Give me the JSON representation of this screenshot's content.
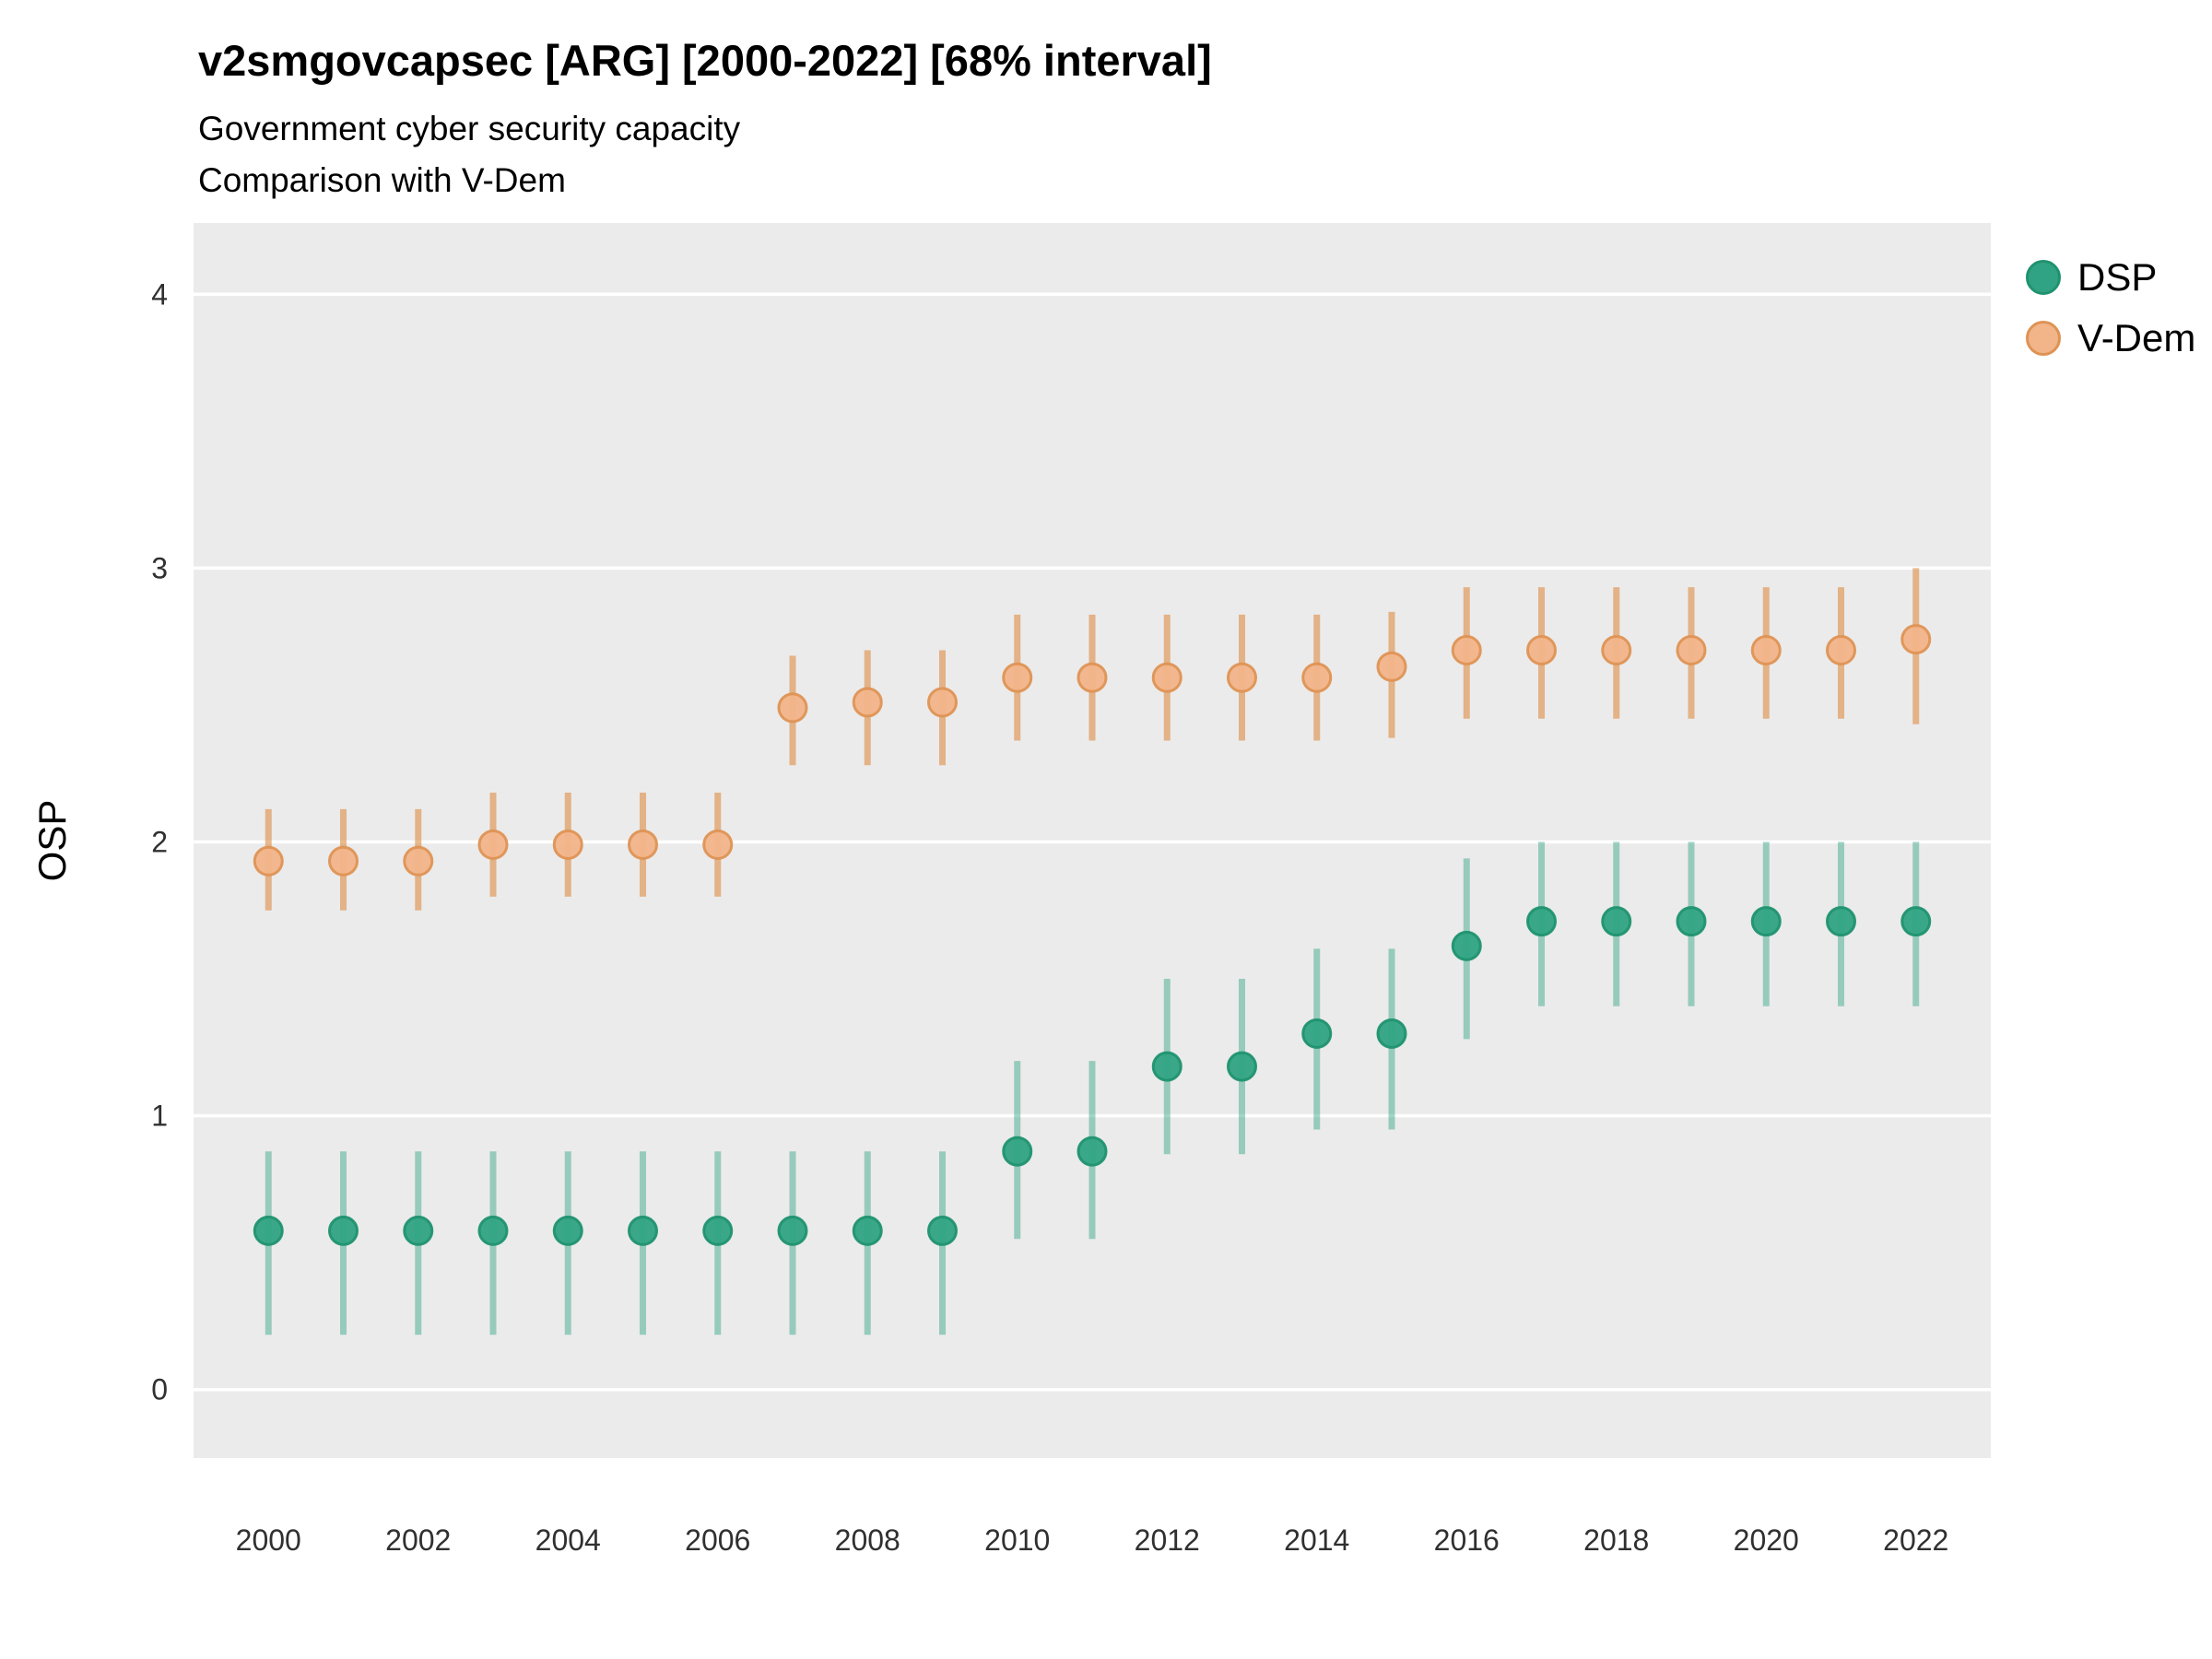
{
  "title": "v2smgovcapsec [ARG] [2000-2022] [68% interval]",
  "subtitle1": "Government cyber security capacity",
  "subtitle2": "Comparison with V-Dem",
  "ylabel": "OSP",
  "colors": {
    "panel_bg": "#EBEBEB",
    "grid": "#FFFFFF",
    "dsp_green": "#2FA383",
    "vdem_orange": "#F2B489"
  },
  "legend": [
    {
      "label": "DSP",
      "fill": "#2FA383",
      "stroke": "#20926F"
    },
    {
      "label": "V-Dem",
      "fill": "#F2B489",
      "stroke": "#DE9355"
    }
  ],
  "chart_data": {
    "type": "pointrange",
    "title": "v2smgovcapsec [ARG] [2000-2022] [68% interval]",
    "subtitle": [
      "Government cyber security capacity",
      "Comparison with V-Dem"
    ],
    "ylabel": "OSP",
    "xlabel": "",
    "x": [
      2000,
      2001,
      2002,
      2003,
      2004,
      2005,
      2006,
      2007,
      2008,
      2009,
      2010,
      2011,
      2012,
      2013,
      2014,
      2015,
      2016,
      2017,
      2018,
      2019,
      2020,
      2021,
      2022
    ],
    "xticks": [
      2000,
      2002,
      2004,
      2006,
      2008,
      2010,
      2012,
      2014,
      2016,
      2018,
      2020,
      2022
    ],
    "yticks": [
      0,
      1,
      2,
      3,
      4
    ],
    "xlim": [
      1999,
      2023
    ],
    "ylim": [
      -0.25,
      4.26
    ],
    "grid": "major-horizontal",
    "legend_position": "right",
    "series": [
      {
        "name": "DSP",
        "point_fill": "#2FA383",
        "point_stroke": "#20926F",
        "point_opacity": 0.95,
        "bar_color": "#2FA383",
        "bar_opacity": 0.45,
        "points": [
          {
            "y": 0.58,
            "lo": 0.2,
            "hi": 0.87
          },
          {
            "y": 0.58,
            "lo": 0.2,
            "hi": 0.87
          },
          {
            "y": 0.58,
            "lo": 0.2,
            "hi": 0.87
          },
          {
            "y": 0.58,
            "lo": 0.2,
            "hi": 0.87
          },
          {
            "y": 0.58,
            "lo": 0.2,
            "hi": 0.87
          },
          {
            "y": 0.58,
            "lo": 0.2,
            "hi": 0.87
          },
          {
            "y": 0.58,
            "lo": 0.2,
            "hi": 0.87
          },
          {
            "y": 0.58,
            "lo": 0.2,
            "hi": 0.87
          },
          {
            "y": 0.58,
            "lo": 0.2,
            "hi": 0.87
          },
          {
            "y": 0.58,
            "lo": 0.2,
            "hi": 0.87
          },
          {
            "y": 0.87,
            "lo": 0.55,
            "hi": 1.2
          },
          {
            "y": 0.87,
            "lo": 0.55,
            "hi": 1.2
          },
          {
            "y": 1.18,
            "lo": 0.86,
            "hi": 1.5
          },
          {
            "y": 1.18,
            "lo": 0.86,
            "hi": 1.5
          },
          {
            "y": 1.3,
            "lo": 0.95,
            "hi": 1.61
          },
          {
            "y": 1.3,
            "lo": 0.95,
            "hi": 1.61
          },
          {
            "y": 1.62,
            "lo": 1.28,
            "hi": 1.94
          },
          {
            "y": 1.71,
            "lo": 1.4,
            "hi": 2.0
          },
          {
            "y": 1.71,
            "lo": 1.4,
            "hi": 2.0
          },
          {
            "y": 1.71,
            "lo": 1.4,
            "hi": 2.0
          },
          {
            "y": 1.71,
            "lo": 1.4,
            "hi": 2.0
          },
          {
            "y": 1.71,
            "lo": 1.4,
            "hi": 2.0
          },
          {
            "y": 1.71,
            "lo": 1.4,
            "hi": 2.0
          }
        ]
      },
      {
        "name": "V-Dem",
        "point_fill": "#F2B489",
        "point_stroke": "#DE9355",
        "point_opacity": 0.95,
        "bar_color": "#DE8C42",
        "bar_opacity": 0.6,
        "points": [
          {
            "y": 1.93,
            "lo": 1.75,
            "hi": 2.12
          },
          {
            "y": 1.93,
            "lo": 1.75,
            "hi": 2.12
          },
          {
            "y": 1.93,
            "lo": 1.75,
            "hi": 2.12
          },
          {
            "y": 1.99,
            "lo": 1.8,
            "hi": 2.18
          },
          {
            "y": 1.99,
            "lo": 1.8,
            "hi": 2.18
          },
          {
            "y": 1.99,
            "lo": 1.8,
            "hi": 2.18
          },
          {
            "y": 1.99,
            "lo": 1.8,
            "hi": 2.18
          },
          {
            "y": 2.49,
            "lo": 2.28,
            "hi": 2.68
          },
          {
            "y": 2.51,
            "lo": 2.28,
            "hi": 2.7
          },
          {
            "y": 2.51,
            "lo": 2.28,
            "hi": 2.7
          },
          {
            "y": 2.6,
            "lo": 2.37,
            "hi": 2.83
          },
          {
            "y": 2.6,
            "lo": 2.37,
            "hi": 2.83
          },
          {
            "y": 2.6,
            "lo": 2.37,
            "hi": 2.83
          },
          {
            "y": 2.6,
            "lo": 2.37,
            "hi": 2.83
          },
          {
            "y": 2.6,
            "lo": 2.37,
            "hi": 2.83
          },
          {
            "y": 2.64,
            "lo": 2.38,
            "hi": 2.84
          },
          {
            "y": 2.7,
            "lo": 2.45,
            "hi": 2.93
          },
          {
            "y": 2.7,
            "lo": 2.45,
            "hi": 2.93
          },
          {
            "y": 2.7,
            "lo": 2.45,
            "hi": 2.93
          },
          {
            "y": 2.7,
            "lo": 2.45,
            "hi": 2.93
          },
          {
            "y": 2.7,
            "lo": 2.45,
            "hi": 2.93
          },
          {
            "y": 2.7,
            "lo": 2.45,
            "hi": 2.93
          },
          {
            "y": 2.74,
            "lo": 2.43,
            "hi": 3.0
          }
        ]
      }
    ]
  }
}
